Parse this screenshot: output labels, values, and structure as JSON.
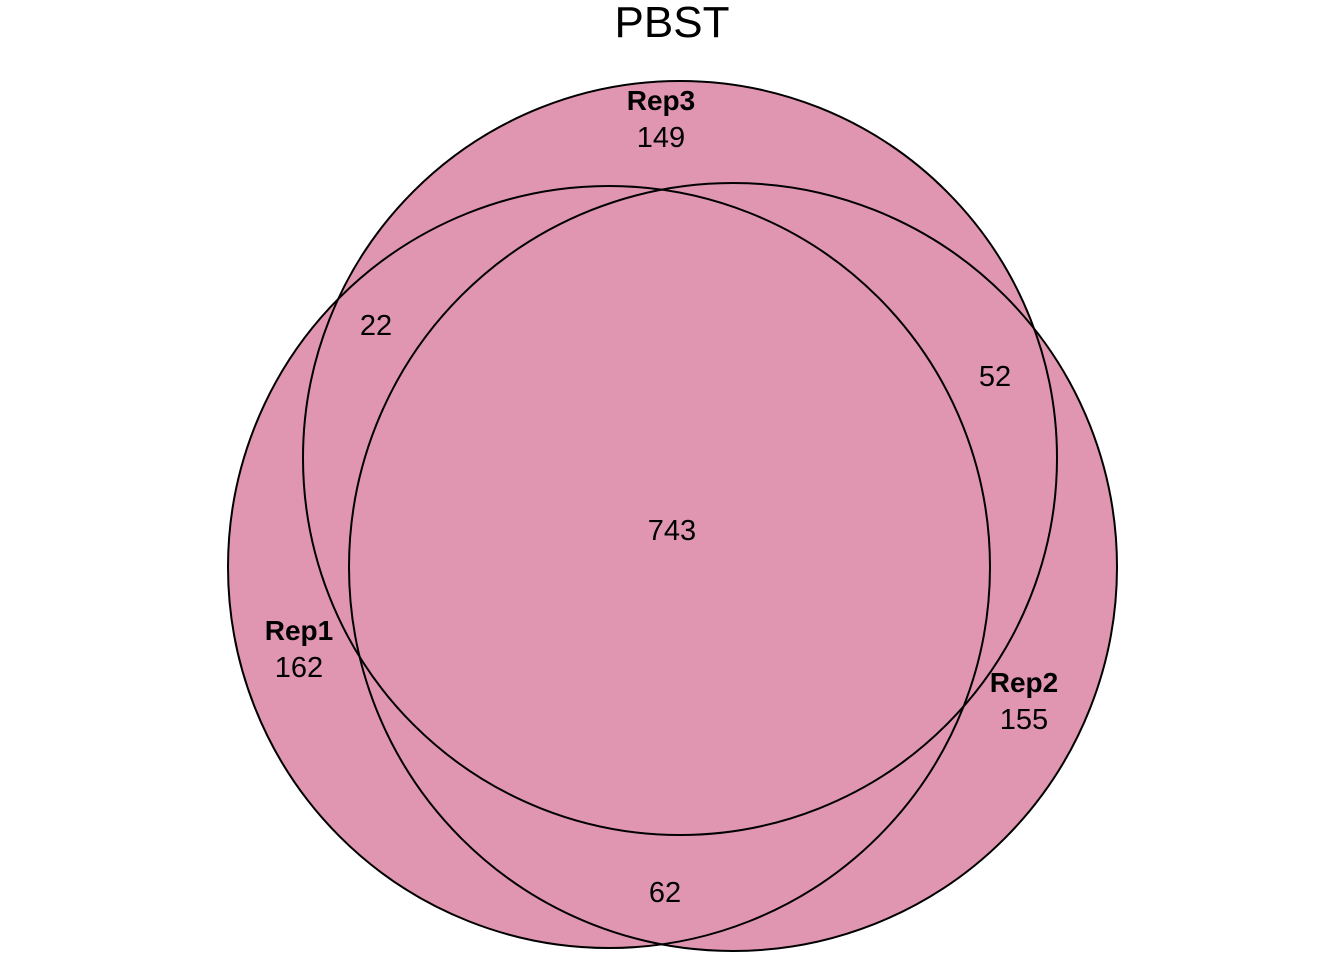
{
  "title": "PBST",
  "sets": {
    "rep3": {
      "label": "Rep3",
      "unique": "149"
    },
    "rep1": {
      "label": "Rep1",
      "unique": "162"
    },
    "rep2": {
      "label": "Rep2",
      "unique": "155"
    }
  },
  "intersections": {
    "rep1_rep3": "22",
    "rep2_rep3": "52",
    "rep1_rep2": "62",
    "all_three": "743"
  },
  "colors": {
    "fill": "#e096b1",
    "stroke": "#000000",
    "background": "#ffffff"
  }
}
